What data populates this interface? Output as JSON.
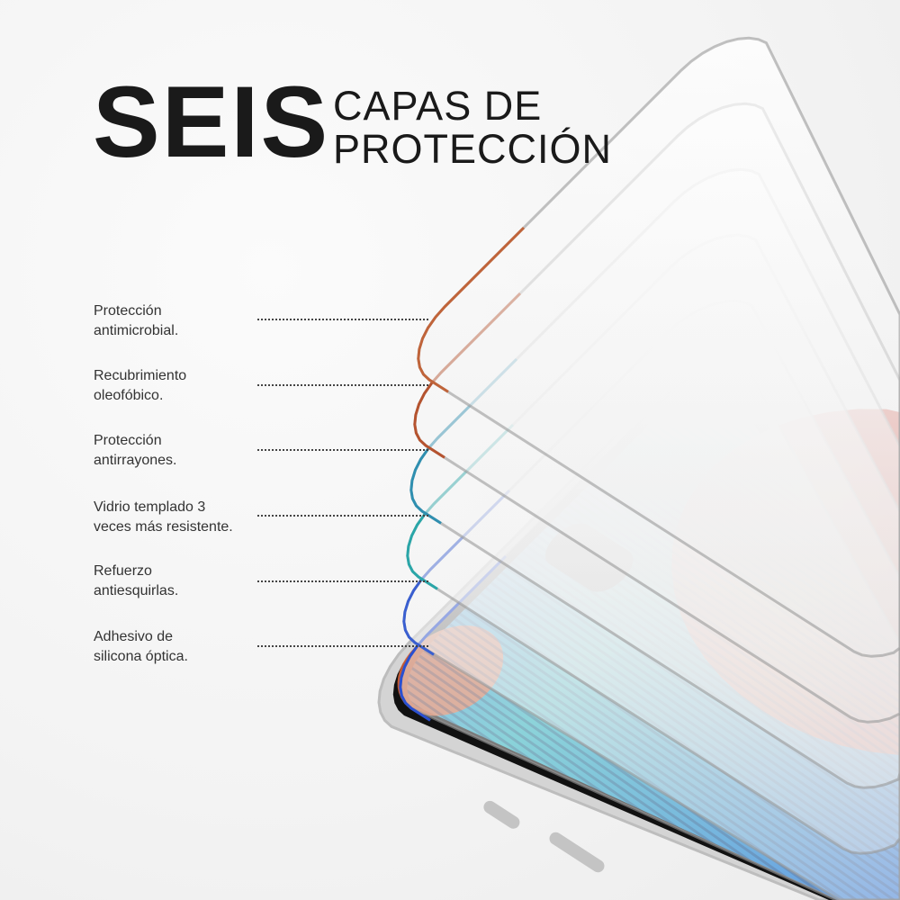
{
  "header": {
    "title_bold": "SEIS",
    "title_line1": "CAPAS DE",
    "title_line2": "PROTECCIÓN"
  },
  "layers": [
    {
      "line1": "Protección",
      "line2": "antimicrobial."
    },
    {
      "line1": "Recubrimiento",
      "line2": "oleofóbico."
    },
    {
      "line1": "Protección",
      "line2": "antirrayones."
    },
    {
      "line1": "Vidrio templado 3",
      "line2": "veces más resistente."
    },
    {
      "line1": "Refuerzo",
      "line2": "antiesquirlas."
    },
    {
      "line1": "Adhesivo de",
      "line2": "silicona óptica."
    }
  ],
  "colors": {
    "text": "#1a1a1a",
    "screen_blue": "#1f6fe0",
    "screen_teal": "#2fb7c4",
    "screen_orange": "#e0663a",
    "frame_silver": "#d9d9d9",
    "bezel": "#111111"
  }
}
